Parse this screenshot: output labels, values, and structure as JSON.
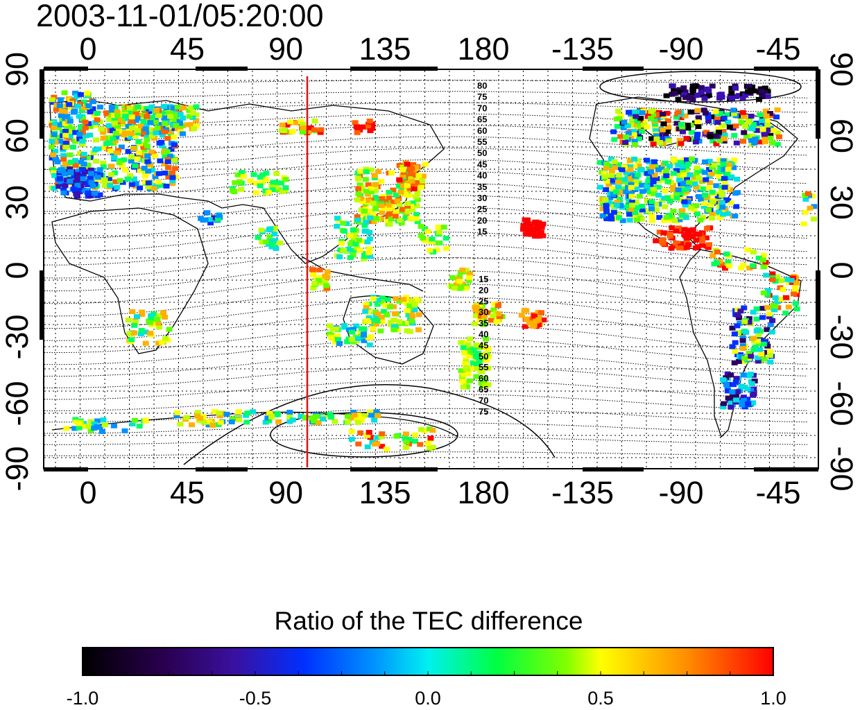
{
  "title": "2003-11-01/05:20:00",
  "top_ticks": [
    "0",
    "45",
    "90",
    "135",
    "180",
    "-135",
    "-90",
    "-45"
  ],
  "bottom_ticks": [
    "0",
    "45",
    "90",
    "135",
    "180",
    "-135",
    "-90",
    "-45"
  ],
  "left_ticks": [
    "90",
    "60",
    "30",
    "0",
    "-30",
    "-60",
    "-90"
  ],
  "right_ticks": [
    "90",
    "60",
    "30",
    "0",
    "-30",
    "-60",
    "-90"
  ],
  "contour_labels_north": [
    "80",
    "75",
    "70",
    "65",
    "60",
    "55",
    "50",
    "45",
    "40",
    "35",
    "30",
    "25",
    "20",
    "15"
  ],
  "contour_labels_south": [
    "15",
    "20",
    "25",
    "30",
    "35",
    "40",
    "45",
    "50",
    "55",
    "60",
    "65",
    "70",
    "75"
  ],
  "colorbar_title": "Ratio of the TEC difference",
  "colorbar_ticks": [
    "-1.0",
    "-0.5",
    "0.0",
    "0.5",
    "1.0"
  ],
  "colors": {
    "marker_line": "#dd1111",
    "colormap": [
      "#000000",
      "#3a006e",
      "#0000ff",
      "#00f0f0",
      "#00ff00",
      "#ffff00",
      "#ff8800",
      "#ff0000"
    ]
  }
}
